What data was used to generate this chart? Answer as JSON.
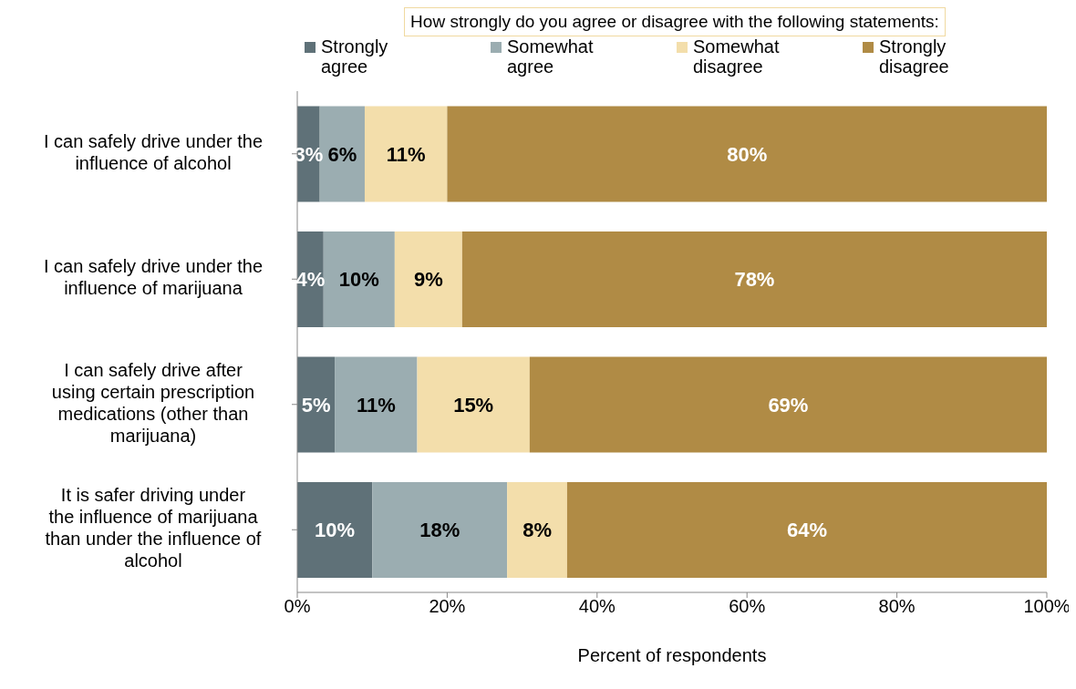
{
  "chart_data": {
    "type": "bar",
    "orientation": "horizontal",
    "stacked": true,
    "title": "How strongly do you agree or disagree with the following statements:",
    "xlabel": "Percent of respondents",
    "categories": [
      "I can safely drive under the influence of alcohol",
      "I can safely drive under the influence of marijuana",
      "I can safely drive after using certain prescription medications (other than marijuana)",
      "It is safer driving under the influence of marijuana than under the influence of alcohol"
    ],
    "series": [
      {
        "name": "Strongly agree",
        "color": "#5f7178",
        "values": [
          3,
          3.5,
          5,
          10
        ],
        "value_labels": [
          "3%",
          "4%",
          "5%",
          "10%"
        ]
      },
      {
        "name": "Somewhat agree",
        "color": "#9badb1",
        "values": [
          6,
          9.5,
          11,
          18
        ],
        "value_labels": [
          "6%",
          "10%",
          "11%",
          "18%"
        ]
      },
      {
        "name": "Somewhat disagree",
        "color": "#f3deab",
        "values": [
          11,
          9,
          15,
          8
        ],
        "value_labels": [
          "11%",
          "9%",
          "15%",
          "8%"
        ]
      },
      {
        "name": "Strongly disagree",
        "color": "#b08b45",
        "values": [
          80,
          78,
          69,
          64
        ],
        "value_labels": [
          "80%",
          "78%",
          "69%",
          "64%"
        ]
      }
    ],
    "xlim": [
      0,
      100
    ],
    "xticks": [
      {
        "value": 0,
        "label": "0%"
      },
      {
        "value": 20,
        "label": "20%"
      },
      {
        "value": 40,
        "label": "40%"
      },
      {
        "value": 60,
        "label": "60%"
      },
      {
        "value": 80,
        "label": "80%"
      },
      {
        "value": 100,
        "label": "100%"
      }
    ],
    "legend": "top",
    "grid": false
  }
}
